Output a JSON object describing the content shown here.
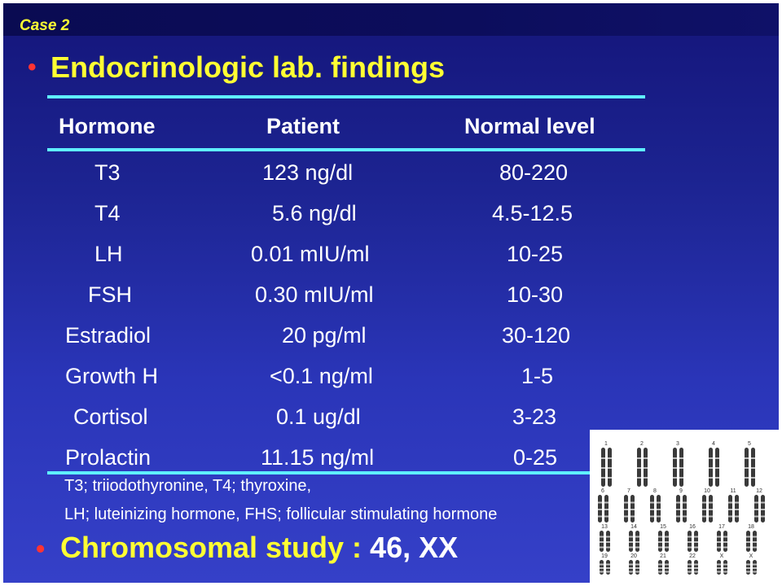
{
  "case_label": "Case 2",
  "title": "Endocrinologic lab. findings",
  "table": {
    "headers": [
      "Hormone",
      "Patient",
      "Normal level"
    ],
    "rows": [
      [
        "T3",
        "123 ng/dl",
        "80-220"
      ],
      [
        "T4",
        "5.6 ng/dl",
        "4.5-12.5"
      ],
      [
        "LH",
        "0.01 mIU/ml",
        "10-25"
      ],
      [
        "FSH",
        "0.30 mIU/ml",
        "10-30"
      ],
      [
        "Estradiol",
        "20 pg/ml",
        "30-120"
      ],
      [
        "Growth H",
        "<0.1 ng/ml",
        "1-5"
      ],
      [
        "Cortisol",
        "0.1 ug/dl",
        "3-23"
      ],
      [
        "Prolactin",
        "11.15 ng/ml",
        "0-25"
      ]
    ]
  },
  "abbreviations": [
    "T3; triiodothyronine, T4; thyroxine,",
    "LH; luteinizing hormone, FHS; follicular stimulating hormone"
  ],
  "chromosome": {
    "label": "Chromosomal study : ",
    "value": "46, XX"
  },
  "karyotype_labels": [
    "1",
    "2",
    "3",
    "4",
    "5",
    "6",
    "7",
    "8",
    "9",
    "10",
    "11",
    "12",
    "13",
    "14",
    "15",
    "16",
    "17",
    "18",
    "19",
    "20",
    "21",
    "22",
    "X",
    "X"
  ],
  "colors": {
    "accent_yellow": "#ffff33",
    "bullet_red": "#ff3333",
    "rule_cyan": "#5ff0ff",
    "text_white": "#ffffff"
  }
}
